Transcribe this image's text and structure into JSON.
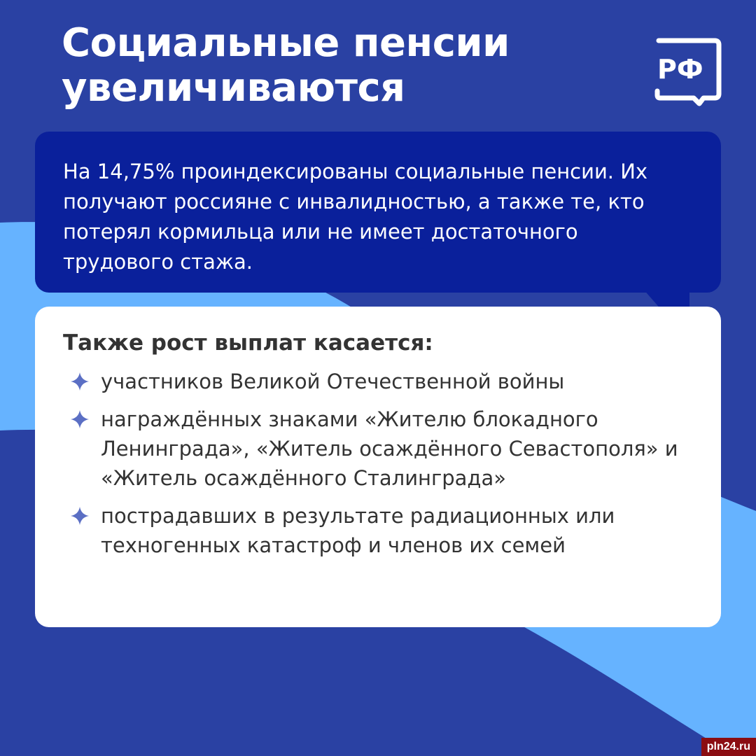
{
  "title_lines": [
    "Социальные пенсии",
    "увеличиваются"
  ],
  "logo_text": "РФ",
  "lead_text": "На 14,75% проиндексированы социальные пенсии. Их получают россияне с инвалидностью, а также те, кто потерял кормильца или не имеет достаточного трудового стажа.",
  "card": {
    "heading": "Также рост выплат касается:",
    "items": [
      "участников Великой Отечественной войны",
      "награждённых знаками «Жителю блокадного Ленинграда», «Житель осаждённого Севастополя» и «Житель осаждённого Сталинграда»",
      "пострадавших в результате радиационных или техногенных катастроф и членов их семей"
    ]
  },
  "watermark": "pln24.ru",
  "colors": {
    "background": "#2a41a3",
    "wave": "#66b3ff",
    "lead_box": "#0a209b",
    "bullet": "#5b6fc4"
  }
}
